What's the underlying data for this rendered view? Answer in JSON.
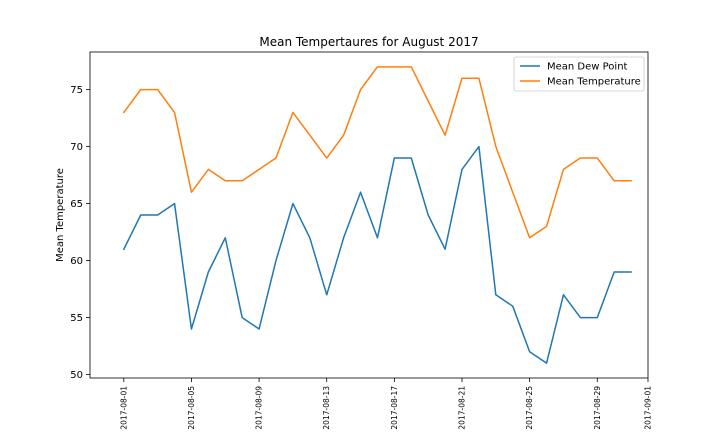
{
  "chart_data": {
    "type": "line",
    "title": "Mean Tempertaures for August 2017",
    "xlabel": "",
    "ylabel": "Mean Temperature",
    "x": [
      "2017-08-01",
      "2017-08-02",
      "2017-08-03",
      "2017-08-04",
      "2017-08-05",
      "2017-08-06",
      "2017-08-07",
      "2017-08-08",
      "2017-08-09",
      "2017-08-10",
      "2017-08-11",
      "2017-08-12",
      "2017-08-13",
      "2017-08-14",
      "2017-08-15",
      "2017-08-16",
      "2017-08-17",
      "2017-08-18",
      "2017-08-19",
      "2017-08-20",
      "2017-08-21",
      "2017-08-22",
      "2017-08-23",
      "2017-08-24",
      "2017-08-25",
      "2017-08-26",
      "2017-08-27",
      "2017-08-28",
      "2017-08-29",
      "2017-08-30",
      "2017-08-31"
    ],
    "xticks": [
      "2017-08-01",
      "2017-08-05",
      "2017-08-09",
      "2017-08-13",
      "2017-08-17",
      "2017-08-21",
      "2017-08-25",
      "2017-08-29",
      "2017-09-01"
    ],
    "xlim": [
      "2017-07-30",
      "2017-09-01"
    ],
    "yticks": [
      50,
      55,
      60,
      65,
      70,
      75
    ],
    "ylim": [
      49.7,
      78.3
    ],
    "grid": false,
    "legend": "top-right",
    "series": [
      {
        "name": "Mean Dew Point",
        "color": "#1f77b4",
        "values": [
          61,
          64,
          64,
          65,
          54,
          59,
          62,
          55,
          54,
          60,
          65,
          62,
          57,
          62,
          66,
          62,
          69,
          69,
          64,
          61,
          68,
          70,
          57,
          56,
          52,
          51,
          57,
          55,
          55,
          59,
          59
        ]
      },
      {
        "name": "Mean Temperature",
        "color": "#ff7f0e",
        "values": [
          73,
          75,
          75,
          73,
          66,
          68,
          67,
          67,
          68,
          69,
          73,
          71,
          69,
          71,
          75,
          77,
          77,
          77,
          74,
          71,
          76,
          76,
          70,
          66,
          62,
          63,
          68,
          69,
          69,
          67,
          67
        ]
      }
    ]
  }
}
